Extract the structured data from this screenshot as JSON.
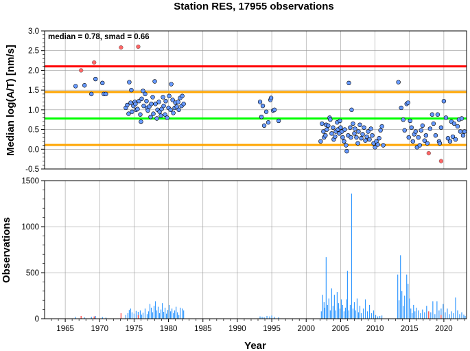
{
  "title": "Station RES, 17955 observations",
  "colors": {
    "point_fill": "#6699ff",
    "outlier_fill": "#ff6666",
    "bar_color": "#3399ff",
    "bar_outlier_color": "#ff3333",
    "red_line": "#ff0000",
    "orange_line": "#ffa500",
    "green_line": "#00ff00",
    "grid": "#999999"
  },
  "chart_data": [
    {
      "type": "scatter",
      "annotation": "median = 0.78, smad = 0.66",
      "ylabel": "Median log(A/T) [nm/s]",
      "xlabel": "",
      "xlim": [
        1962,
        2023.3
      ],
      "ylim": [
        -0.5,
        3.0
      ],
      "yticks": [
        "-0.5",
        "0.0",
        "0.5",
        "1.0",
        "1.5",
        "2.0",
        "2.5",
        "3.0"
      ],
      "grid": true,
      "reference_lines": [
        {
          "name": "median",
          "y": 0.78,
          "color": "#00ff00"
        },
        {
          "name": "upper",
          "y": 1.45,
          "color": "#ffa500"
        },
        {
          "name": "lower",
          "y": 0.11,
          "color": "#ffa500"
        },
        {
          "name": "outlier",
          "y": 2.1,
          "color": "#ff0000"
        }
      ],
      "outliers": [
        [
          1967.3,
          2.0
        ],
        [
          1969.2,
          2.2
        ],
        [
          1973.1,
          2.58
        ],
        [
          1975.6,
          2.6
        ],
        [
          2017.8,
          -0.1
        ],
        [
          2019.6,
          -0.3
        ]
      ],
      "points": [
        [
          1966.5,
          1.6
        ],
        [
          1967.8,
          1.62
        ],
        [
          1968.8,
          1.4
        ],
        [
          1969.4,
          1.78
        ],
        [
          1970.4,
          1.68
        ],
        [
          1970.6,
          1.4
        ],
        [
          1970.9,
          1.4
        ],
        [
          1973.8,
          1.05
        ],
        [
          1974.0,
          1.12
        ],
        [
          1974.2,
          0.9
        ],
        [
          1974.3,
          1.7
        ],
        [
          1974.5,
          1.18
        ],
        [
          1974.6,
          1.5
        ],
        [
          1974.7,
          0.95
        ],
        [
          1974.9,
          1.1
        ],
        [
          1975.1,
          1.2
        ],
        [
          1975.2,
          1.15
        ],
        [
          1975.3,
          1.0
        ],
        [
          1975.5,
          1.02
        ],
        [
          1975.7,
          1.22
        ],
        [
          1975.9,
          0.88
        ],
        [
          1976.0,
          0.7
        ],
        [
          1976.1,
          1.28
        ],
        [
          1976.3,
          1.48
        ],
        [
          1976.4,
          1.1
        ],
        [
          1976.6,
          1.4
        ],
        [
          1976.8,
          1.22
        ],
        [
          1976.9,
          1.05
        ],
        [
          1977.0,
          0.98
        ],
        [
          1977.2,
          1.08
        ],
        [
          1977.4,
          0.82
        ],
        [
          1977.5,
          1.15
        ],
        [
          1977.7,
          1.32
        ],
        [
          1977.8,
          0.9
        ],
        [
          1978.0,
          1.72
        ],
        [
          1978.1,
          1.15
        ],
        [
          1978.3,
          0.78
        ],
        [
          1978.4,
          1.0
        ],
        [
          1978.6,
          1.2
        ],
        [
          1978.7,
          0.95
        ],
        [
          1978.9,
          0.85
        ],
        [
          1979.0,
          1.02
        ],
        [
          1979.2,
          1.32
        ],
        [
          1979.3,
          1.1
        ],
        [
          1979.5,
          0.88
        ],
        [
          1979.6,
          1.22
        ],
        [
          1979.8,
          0.8
        ],
        [
          1980.0,
          1.05
        ],
        [
          1980.1,
          1.35
        ],
        [
          1980.3,
          1.0
        ],
        [
          1980.4,
          1.65
        ],
        [
          1980.6,
          1.25
        ],
        [
          1980.7,
          0.92
        ],
        [
          1980.9,
          1.05
        ],
        [
          1981.0,
          1.18
        ],
        [
          1981.2,
          1.08
        ],
        [
          1981.4,
          1.2
        ],
        [
          1981.5,
          1.0
        ],
        [
          1981.7,
          1.3
        ],
        [
          1981.9,
          1.1
        ],
        [
          1982.0,
          1.35
        ],
        [
          1982.2,
          1.15
        ],
        [
          1993.3,
          1.2
        ],
        [
          1993.5,
          0.82
        ],
        [
          1993.7,
          1.1
        ],
        [
          1993.9,
          0.6
        ],
        [
          1994.2,
          0.95
        ],
        [
          1994.5,
          0.68
        ],
        [
          1994.8,
          1.25
        ],
        [
          1994.9,
          1.3
        ],
        [
          1995.2,
          0.98
        ],
        [
          1995.4,
          1.0
        ],
        [
          1996.0,
          0.72
        ],
        [
          2002.1,
          0.2
        ],
        [
          2002.3,
          0.65
        ],
        [
          2002.5,
          0.45
        ],
        [
          2002.6,
          0.3
        ],
        [
          2002.8,
          0.35
        ],
        [
          2002.9,
          0.62
        ],
        [
          2003.0,
          0.5
        ],
        [
          2003.2,
          0.6
        ],
        [
          2003.4,
          0.8
        ],
        [
          2003.5,
          0.75
        ],
        [
          2003.7,
          0.4
        ],
        [
          2003.9,
          0.55
        ],
        [
          2004.0,
          0.25
        ],
        [
          2004.2,
          0.32
        ],
        [
          2004.3,
          0.45
        ],
        [
          2004.5,
          0.68
        ],
        [
          2004.6,
          0.5
        ],
        [
          2004.8,
          0.4
        ],
        [
          2004.9,
          0.72
        ],
        [
          2005.0,
          0.55
        ],
        [
          2005.2,
          0.45
        ],
        [
          2005.3,
          0.3
        ],
        [
          2005.5,
          0.2
        ],
        [
          2005.6,
          0.5
        ],
        [
          2005.8,
          0.1
        ],
        [
          2005.9,
          -0.05
        ],
        [
          2006.1,
          0.35
        ],
        [
          2006.2,
          1.68
        ],
        [
          2006.4,
          0.55
        ],
        [
          2006.5,
          0.3
        ],
        [
          2006.6,
          1.0
        ],
        [
          2006.8,
          0.65
        ],
        [
          2007.0,
          0.4
        ],
        [
          2007.1,
          0.52
        ],
        [
          2007.3,
          0.3
        ],
        [
          2007.5,
          0.15
        ],
        [
          2007.6,
          0.45
        ],
        [
          2007.8,
          0.62
        ],
        [
          2008.0,
          0.28
        ],
        [
          2008.2,
          0.38
        ],
        [
          2008.4,
          0.55
        ],
        [
          2008.6,
          0.22
        ],
        [
          2008.8,
          0.32
        ],
        [
          2009.0,
          0.45
        ],
        [
          2009.2,
          0.25
        ],
        [
          2009.4,
          0.52
        ],
        [
          2009.6,
          0.35
        ],
        [
          2009.8,
          0.15
        ],
        [
          2010.0,
          0.05
        ],
        [
          2010.2,
          0.2
        ],
        [
          2010.4,
          0.12
        ],
        [
          2010.6,
          0.28
        ],
        [
          2010.8,
          0.48
        ],
        [
          2011.0,
          0.58
        ],
        [
          2011.2,
          0.1
        ],
        [
          2013.4,
          1.7
        ],
        [
          2013.8,
          1.05
        ],
        [
          2014.1,
          0.75
        ],
        [
          2014.3,
          0.48
        ],
        [
          2014.6,
          1.15
        ],
        [
          2014.8,
          1.18
        ],
        [
          2014.9,
          0.3
        ],
        [
          2015.1,
          0.72
        ],
        [
          2015.3,
          0.55
        ],
        [
          2015.5,
          0.2
        ],
        [
          2015.7,
          0.38
        ],
        [
          2015.9,
          0.45
        ],
        [
          2016.1,
          0.05
        ],
        [
          2016.3,
          0.3
        ],
        [
          2016.5,
          0.1
        ],
        [
          2016.7,
          0.48
        ],
        [
          2016.9,
          0.6
        ],
        [
          2017.2,
          0.22
        ],
        [
          2017.4,
          0.35
        ],
        [
          2017.6,
          0.15
        ],
        [
          2018.0,
          0.52
        ],
        [
          2018.3,
          0.88
        ],
        [
          2018.5,
          0.65
        ],
        [
          2018.8,
          0.35
        ],
        [
          2019.1,
          0.88
        ],
        [
          2019.3,
          0.2
        ],
        [
          2019.4,
          0.15
        ],
        [
          2019.6,
          0.55
        ],
        [
          2020.0,
          1.22
        ],
        [
          2020.3,
          0.8
        ],
        [
          2020.6,
          0.28
        ],
        [
          2020.9,
          0.2
        ],
        [
          2021.1,
          0.7
        ],
        [
          2021.3,
          0.32
        ],
        [
          2021.5,
          0.65
        ],
        [
          2021.7,
          0.25
        ],
        [
          2022.0,
          0.58
        ],
        [
          2022.2,
          0.75
        ],
        [
          2022.4,
          0.45
        ],
        [
          2022.6,
          0.78
        ],
        [
          2022.8,
          0.35
        ],
        [
          2023.0,
          0.45
        ]
      ]
    },
    {
      "type": "bar",
      "xlabel": "Year",
      "ylabel": "Observations",
      "xlim": [
        1962,
        2023.3
      ],
      "ylim": [
        0,
        1500
      ],
      "yticks": [
        "0",
        "500",
        "1000",
        "1500"
      ],
      "xticks": [
        "1965",
        "1970",
        "1975",
        "1980",
        "1985",
        "1990",
        "1995",
        "2000",
        "2005",
        "2010",
        "2015",
        "2020"
      ],
      "grid": true,
      "outlier_bars": [
        [
          1967.3,
          30
        ],
        [
          1969.2,
          25
        ],
        [
          1973.1,
          60
        ],
        [
          1975.6,
          40
        ],
        [
          2017.8,
          80
        ],
        [
          2019.6,
          40
        ]
      ],
      "bars": [
        [
          1966.5,
          20
        ],
        [
          1967.8,
          15
        ],
        [
          1968.8,
          20
        ],
        [
          1969.4,
          30
        ],
        [
          1970.4,
          18
        ],
        [
          1970.9,
          12
        ],
        [
          1973.8,
          40
        ],
        [
          1974.1,
          60
        ],
        [
          1974.3,
          95
        ],
        [
          1974.5,
          110
        ],
        [
          1974.7,
          70
        ],
        [
          1975.0,
          55
        ],
        [
          1975.3,
          85
        ],
        [
          1975.6,
          75
        ],
        [
          1975.9,
          90
        ],
        [
          1976.1,
          45
        ],
        [
          1976.3,
          65
        ],
        [
          1976.6,
          110
        ],
        [
          1976.9,
          50
        ],
        [
          1977.1,
          80
        ],
        [
          1977.3,
          160
        ],
        [
          1977.5,
          120
        ],
        [
          1977.7,
          70
        ],
        [
          1977.9,
          140
        ],
        [
          1978.1,
          190
        ],
        [
          1978.3,
          90
        ],
        [
          1978.5,
          130
        ],
        [
          1978.7,
          60
        ],
        [
          1978.9,
          100
        ],
        [
          1979.1,
          170
        ],
        [
          1979.3,
          75
        ],
        [
          1979.5,
          120
        ],
        [
          1979.7,
          55
        ],
        [
          1979.9,
          95
        ],
        [
          1980.1,
          150
        ],
        [
          1980.3,
          80
        ],
        [
          1980.5,
          110
        ],
        [
          1980.7,
          60
        ],
        [
          1980.9,
          90
        ],
        [
          1981.1,
          130
        ],
        [
          1981.3,
          70
        ],
        [
          1981.5,
          40
        ],
        [
          1981.7,
          120
        ],
        [
          1982.0,
          110
        ],
        [
          1982.2,
          90
        ],
        [
          1993.3,
          25
        ],
        [
          1993.6,
          20
        ],
        [
          1993.9,
          15
        ],
        [
          1994.3,
          30
        ],
        [
          1994.7,
          25
        ],
        [
          1995.0,
          35
        ],
        [
          1995.4,
          20
        ],
        [
          1996.0,
          15
        ],
        [
          2002.2,
          80
        ],
        [
          2002.4,
          260
        ],
        [
          2002.6,
          180
        ],
        [
          2002.7,
          120
        ],
        [
          2002.9,
          670
        ],
        [
          2003.1,
          150
        ],
        [
          2003.3,
          220
        ],
        [
          2003.5,
          90
        ],
        [
          2003.7,
          330
        ],
        [
          2003.9,
          140
        ],
        [
          2004.1,
          260
        ],
        [
          2004.3,
          90
        ],
        [
          2004.5,
          290
        ],
        [
          2004.7,
          170
        ],
        [
          2004.9,
          110
        ],
        [
          2005.1,
          210
        ],
        [
          2005.3,
          150
        ],
        [
          2005.5,
          80
        ],
        [
          2005.7,
          120
        ],
        [
          2005.9,
          210
        ],
        [
          2006.0,
          520
        ],
        [
          2006.2,
          90
        ],
        [
          2006.4,
          150
        ],
        [
          2006.6,
          1360
        ],
        [
          2006.8,
          110
        ],
        [
          2007.0,
          180
        ],
        [
          2007.2,
          90
        ],
        [
          2007.4,
          220
        ],
        [
          2007.6,
          70
        ],
        [
          2007.8,
          140
        ],
        [
          2008.0,
          60
        ],
        [
          2008.3,
          110
        ],
        [
          2008.6,
          210
        ],
        [
          2008.9,
          80
        ],
        [
          2009.2,
          150
        ],
        [
          2009.5,
          60
        ],
        [
          2009.8,
          90
        ],
        [
          2010.1,
          40
        ],
        [
          2010.4,
          25
        ],
        [
          2010.7,
          30
        ],
        [
          2011.0,
          35
        ],
        [
          2013.3,
          480
        ],
        [
          2013.5,
          200
        ],
        [
          2013.7,
          690
        ],
        [
          2013.9,
          300
        ],
        [
          2014.1,
          140
        ],
        [
          2014.3,
          250
        ],
        [
          2014.6,
          480
        ],
        [
          2014.8,
          380
        ],
        [
          2015.0,
          220
        ],
        [
          2015.2,
          110
        ],
        [
          2015.4,
          60
        ],
        [
          2015.6,
          150
        ],
        [
          2015.8,
          80
        ],
        [
          2016.0,
          120
        ],
        [
          2016.3,
          90
        ],
        [
          2016.6,
          60
        ],
        [
          2016.9,
          100
        ],
        [
          2017.2,
          70
        ],
        [
          2017.5,
          140
        ],
        [
          2018.1,
          70
        ],
        [
          2018.4,
          190
        ],
        [
          2018.7,
          50
        ],
        [
          2019.0,
          190
        ],
        [
          2019.3,
          90
        ],
        [
          2019.6,
          110
        ],
        [
          2019.9,
          160
        ],
        [
          2020.2,
          70
        ],
        [
          2020.5,
          110
        ],
        [
          2020.8,
          50
        ],
        [
          2021.1,
          80
        ],
        [
          2021.4,
          60
        ],
        [
          2021.7,
          230
        ],
        [
          2022.0,
          90
        ],
        [
          2022.3,
          50
        ],
        [
          2022.6,
          70
        ],
        [
          2022.9,
          45
        ],
        [
          2023.1,
          30
        ]
      ]
    }
  ]
}
